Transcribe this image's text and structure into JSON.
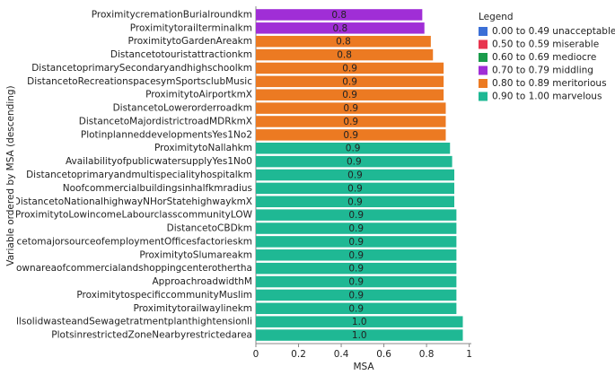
{
  "chart_data": {
    "type": "bar",
    "orientation": "horizontal",
    "x_label": "MSA",
    "y_label": "Variable ordered by MSA (descending)",
    "legend_title": "Legend",
    "legend": [
      {
        "name": "0.00 to 0.49 unacceptable",
        "color": "#3b6fd6"
      },
      {
        "name": "0.50 to 0.59 miserable",
        "color": "#e8344e"
      },
      {
        "name": "0.60 to 0.69 mediocre",
        "color": "#1a9b4a"
      },
      {
        "name": "0.70 to 0.79 middling",
        "color": "#a02ed6"
      },
      {
        "name": "0.80 to 0.89 meritorious",
        "color": "#ec7a22"
      },
      {
        "name": "0.90 to 1.00 marvelous",
        "color": "#1fb894"
      }
    ],
    "categories": [
      "ProximitycremationBurialroundkm",
      "Proximitytorailterminalkm",
      "ProximitytoGardenAreakm",
      "Distancetotouristattractionkm",
      "DistancetoprimarySecondaryandhighschoolkm",
      "DistancetoRecreationspacesymSportsclubMusic",
      "ProximitytoAirportkmX",
      "DistancetoLowerorderroadkm",
      "DistancetoMajordistrictroadMDRkmX",
      "PlotinplanneddevelopmentsYes1No2",
      "ProximitytoNallahkm",
      "AvailabilityofpublicwatersupplyYes1No0",
      "Distancetoprimaryandmultispecialityhospitalkm",
      "Noofcommercialbuildingsinhalfkmradius",
      "DistancetoNationalhighwayNHorStatehighwaykmX",
      "ProximitytoLowincomeLabourclasscommunityLOW",
      "DistancetoCBDkm",
      "DistancetomajorsourceofemploymentOfficesfactorieskm",
      "ProximitytoSlumareakm",
      "eraltownareaofcommercialandshoppingcenterothertha",
      "ApproachroadwidthM",
      "ProximitytospecificcommunityMuslim",
      "Proximitytorailwaylinekm",
      "LandfillsolidwasteandSewagetratmentplanthightensionli",
      "PlotsinrestrictedZoneNearbyrestrictedarea"
    ],
    "values": [
      0.78,
      0.79,
      0.82,
      0.83,
      0.88,
      0.88,
      0.88,
      0.89,
      0.89,
      0.89,
      0.91,
      0.92,
      0.93,
      0.93,
      0.93,
      0.94,
      0.94,
      0.94,
      0.94,
      0.94,
      0.94,
      0.94,
      0.94,
      0.97,
      0.97
    ],
    "value_labels": [
      "0.8",
      "0.8",
      "0.8",
      "0.8",
      "0.9",
      "0.9",
      "0.9",
      "0.9",
      "0.9",
      "0.9",
      "0.9",
      "0.9",
      "0.9",
      "0.9",
      "0.9",
      "0.9",
      "0.9",
      "0.9",
      "0.9",
      "0.9",
      "0.9",
      "0.9",
      "0.9",
      "1.0",
      "1.0"
    ],
    "colors": [
      "#a02ed6",
      "#a02ed6",
      "#ec7a22",
      "#ec7a22",
      "#ec7a22",
      "#ec7a22",
      "#ec7a22",
      "#ec7a22",
      "#ec7a22",
      "#ec7a22",
      "#1fb894",
      "#1fb894",
      "#1fb894",
      "#1fb894",
      "#1fb894",
      "#1fb894",
      "#1fb894",
      "#1fb894",
      "#1fb894",
      "#1fb894",
      "#1fb894",
      "#1fb894",
      "#1fb894",
      "#1fb894",
      "#1fb894"
    ],
    "xlim": [
      0,
      1.01
    ],
    "xticks": [
      0,
      0.2,
      0.4,
      0.6,
      0.8,
      1
    ]
  }
}
